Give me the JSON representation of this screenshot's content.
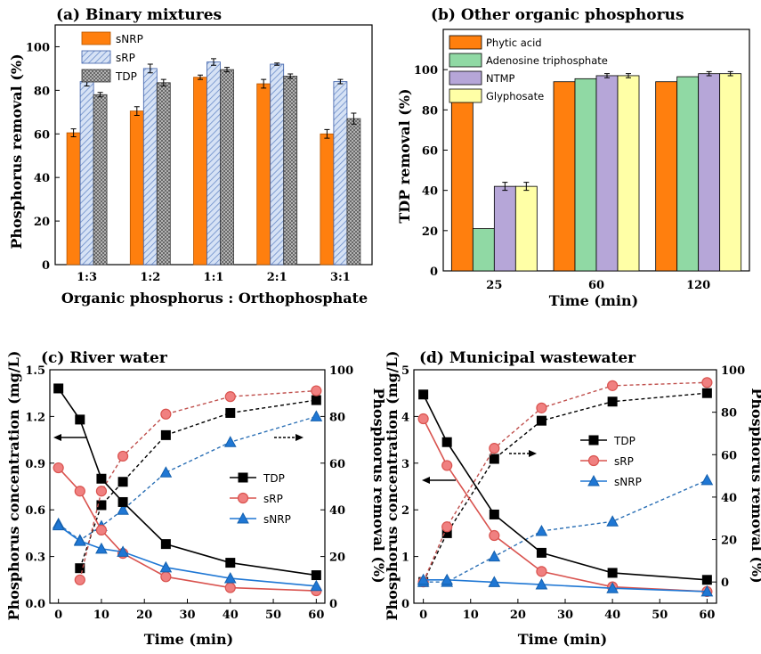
{
  "colors": {
    "orange": "#ff7f0e",
    "blue_hatch": "#a8bfe6",
    "gray_hatch": "#9a9a9a",
    "green": "#90d9a4",
    "purple": "#b6a6d8",
    "yellow": "#ffffa6",
    "black": "#000000",
    "red": "#d9534f",
    "red_fill": "#f08080",
    "blue": "#1f77d4"
  },
  "chart_data": [
    {
      "id": "a",
      "type": "bar",
      "title": "(a) Binary mixtures",
      "xlabel": "Organic phosphorus : Orthophosphate",
      "ylabel": "Phosphorus removal  (%)",
      "ylim": [
        0,
        110
      ],
      "yticks": [
        0,
        20,
        40,
        60,
        80,
        100
      ],
      "categories": [
        "1:3",
        "1:2",
        "1:1",
        "2:1",
        "3:1"
      ],
      "legend_position": "top-left",
      "series": [
        {
          "name": "sNRP",
          "values": [
            60.5,
            70.5,
            86,
            83,
            60
          ],
          "errors": [
            1.8,
            2,
            1,
            2,
            2
          ]
        },
        {
          "name": "sRP",
          "values": [
            84,
            90,
            93,
            92,
            84
          ],
          "errors": [
            2,
            2,
            1.5,
            0.5,
            1
          ]
        },
        {
          "name": "TDP",
          "values": [
            78,
            83.5,
            89.5,
            86.5,
            67
          ],
          "errors": [
            1,
            1.5,
            1,
            1,
            2.5
          ]
        }
      ]
    },
    {
      "id": "b",
      "type": "bar",
      "title": "(b) Other organic phosphorus",
      "xlabel": "Time (min)",
      "ylabel": "TDP removal (%)",
      "ylim": [
        0,
        120
      ],
      "yticks": [
        0,
        20,
        40,
        60,
        80,
        100
      ],
      "categories": [
        "25",
        "60",
        "120"
      ],
      "legend_position": "top-left",
      "series": [
        {
          "name": "Phytic acid",
          "values": [
            88.5,
            94,
            94
          ],
          "errors": [
            0,
            0,
            0
          ]
        },
        {
          "name": "Adenosine triphosphate",
          "values": [
            21,
            95.5,
            96.5
          ],
          "errors": [
            0,
            0,
            0
          ]
        },
        {
          "name": "NTMP",
          "values": [
            42,
            97,
            98
          ],
          "errors": [
            2,
            1,
            1
          ]
        },
        {
          "name": "Glyphosate",
          "values": [
            42,
            97,
            98
          ],
          "errors": [
            2,
            1,
            1
          ]
        }
      ]
    },
    {
      "id": "c",
      "type": "line",
      "title": "(c) River water",
      "xlabel": "Time (min)",
      "ylabel": "Phosphorus concentration (mg/L)",
      "ylabel_right": "Phosphorus removal (%)",
      "xlim": [
        -2,
        62
      ],
      "ylim": [
        0,
        1.5
      ],
      "ylim_right": [
        0,
        100
      ],
      "xticks": [
        0,
        10,
        20,
        30,
        40,
        50,
        60
      ],
      "yticks": [
        0.0,
        0.3,
        0.6,
        0.9,
        1.2,
        1.5
      ],
      "yticks_right": [
        0,
        20,
        40,
        60,
        80,
        100
      ],
      "legend_position": "center-right",
      "concentration_series": [
        {
          "name": "TDP",
          "marker": "square",
          "x": [
            0,
            5,
            10,
            15,
            25,
            40,
            60
          ],
          "y": [
            1.38,
            1.18,
            0.8,
            0.65,
            0.38,
            0.26,
            0.18
          ]
        },
        {
          "name": "sRP",
          "marker": "circle",
          "x": [
            0,
            5,
            10,
            15,
            25,
            40,
            60
          ],
          "y": [
            0.87,
            0.72,
            0.47,
            0.32,
            0.17,
            0.1,
            0.08
          ]
        },
        {
          "name": "sNRP",
          "marker": "triangle",
          "x": [
            0,
            5,
            10,
            15,
            25,
            40,
            60
          ],
          "y": [
            0.5,
            0.4,
            0.35,
            0.33,
            0.23,
            0.16,
            0.11
          ]
        }
      ],
      "removal_series": [
        {
          "name": "TDP",
          "marker": "square",
          "x": [
            5,
            10,
            15,
            25,
            40,
            60
          ],
          "y": [
            15,
            42,
            52,
            72,
            81.5,
            87
          ]
        },
        {
          "name": "sRP",
          "marker": "circle",
          "x": [
            5,
            10,
            15,
            25,
            40,
            60
          ],
          "y": [
            10,
            48,
            63,
            81,
            88.5,
            91
          ]
        },
        {
          "name": "sNRP",
          "marker": "triangle",
          "x": [
            0,
            5,
            10,
            15,
            25,
            40,
            60
          ],
          "y": [
            34,
            27,
            33,
            40,
            56,
            69,
            80
          ]
        }
      ]
    },
    {
      "id": "d",
      "type": "line",
      "title": "(d) Municipal wastewater",
      "xlabel": "Time (min)",
      "ylabel": "Phosphorus concentration (mg/L)",
      "ylabel_right": "Phosphorus removal (%)",
      "xlim": [
        -2,
        62
      ],
      "ylim": [
        0,
        5
      ],
      "ylim_right": [
        -10,
        100
      ],
      "xticks": [
        0,
        10,
        20,
        30,
        40,
        50,
        60
      ],
      "yticks": [
        0,
        1,
        2,
        3,
        4,
        5
      ],
      "yticks_right": [
        0,
        20,
        40,
        60,
        80,
        100
      ],
      "legend_position": "center-right",
      "concentration_series": [
        {
          "name": "TDP",
          "marker": "square",
          "x": [
            0,
            5,
            15,
            25,
            40,
            60
          ],
          "y": [
            4.47,
            3.45,
            1.9,
            1.08,
            0.65,
            0.5
          ]
        },
        {
          "name": "sRP",
          "marker": "circle",
          "x": [
            0,
            5,
            15,
            25,
            40,
            60
          ],
          "y": [
            3.95,
            2.95,
            1.45,
            0.68,
            0.35,
            0.25
          ]
        },
        {
          "name": "sNRP",
          "marker": "triangle",
          "x": [
            0,
            5,
            15,
            25,
            40,
            60
          ],
          "y": [
            0.5,
            0.5,
            0.45,
            0.4,
            0.32,
            0.25
          ]
        }
      ],
      "removal_series": [
        {
          "name": "TDP",
          "marker": "square",
          "x": [
            0,
            5,
            15,
            25,
            40,
            60
          ],
          "y": [
            0,
            23,
            58,
            76,
            85,
            89
          ]
        },
        {
          "name": "sRP",
          "marker": "circle",
          "x": [
            0,
            5,
            15,
            25,
            40,
            60
          ],
          "y": [
            0,
            26,
            63,
            82,
            92.5,
            94
          ]
        },
        {
          "name": "sNRP",
          "marker": "triangle",
          "x": [
            0,
            5,
            15,
            25,
            40,
            60
          ],
          "y": [
            0,
            0,
            12,
            24,
            28.5,
            48
          ]
        }
      ]
    }
  ]
}
